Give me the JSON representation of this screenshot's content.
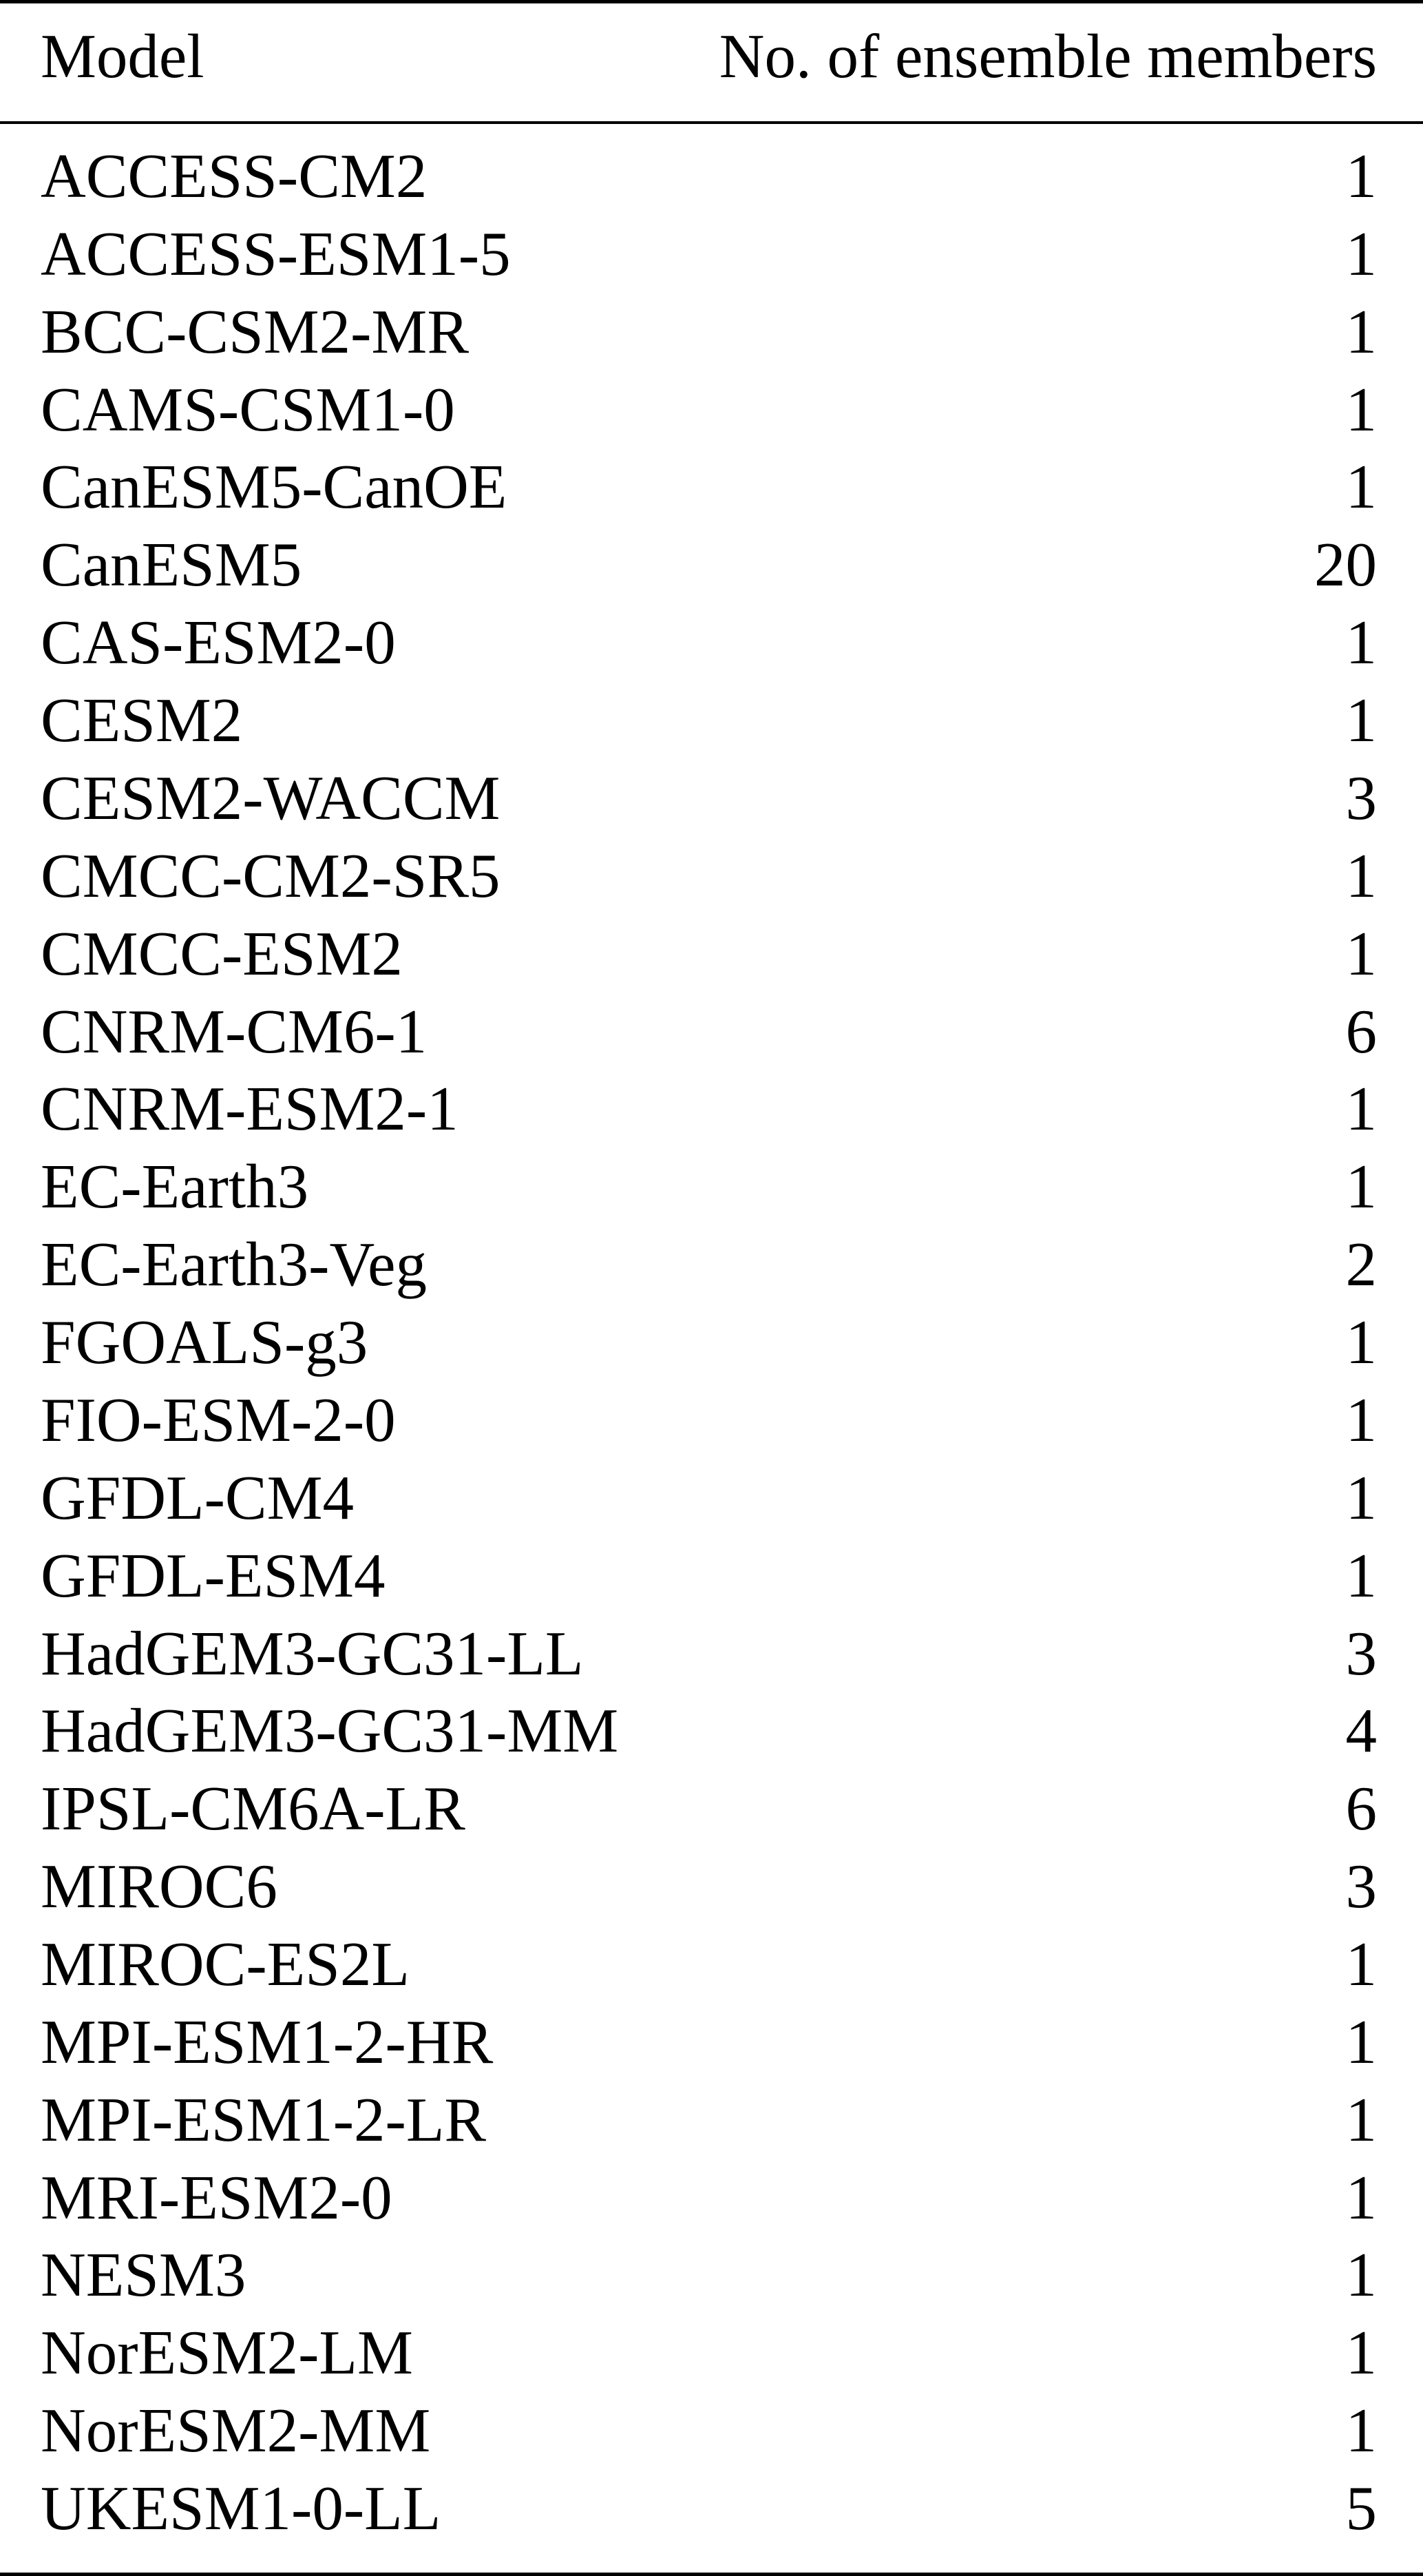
{
  "table": {
    "headers": [
      "Model",
      "No. of ensemble members"
    ],
    "rows": [
      [
        "ACCESS-CM2",
        "1"
      ],
      [
        "ACCESS-ESM1-5",
        "1"
      ],
      [
        "BCC-CSM2-MR",
        "1"
      ],
      [
        "CAMS-CSM1-0",
        "1"
      ],
      [
        "CanESM5-CanOE",
        "1"
      ],
      [
        "CanESM5",
        "20"
      ],
      [
        "CAS-ESM2-0",
        "1"
      ],
      [
        "CESM2",
        "1"
      ],
      [
        "CESM2-WACCM",
        "3"
      ],
      [
        "CMCC-CM2-SR5",
        "1"
      ],
      [
        "CMCC-ESM2",
        "1"
      ],
      [
        "CNRM-CM6-1",
        "6"
      ],
      [
        "CNRM-ESM2-1",
        "1"
      ],
      [
        "EC-Earth3",
        "1"
      ],
      [
        "EC-Earth3-Veg",
        "2"
      ],
      [
        "FGOALS-g3",
        "1"
      ],
      [
        "FIO-ESM-2-0",
        "1"
      ],
      [
        "GFDL-CM4",
        "1"
      ],
      [
        "GFDL-ESM4",
        "1"
      ],
      [
        "HadGEM3-GC31-LL",
        "3"
      ],
      [
        "HadGEM3-GC31-MM",
        "4"
      ],
      [
        "IPSL-CM6A-LR",
        "6"
      ],
      [
        "MIROC6",
        "3"
      ],
      [
        "MIROC-ES2L",
        "1"
      ],
      [
        "MPI-ESM1-2-HR",
        "1"
      ],
      [
        "MPI-ESM1-2-LR",
        "1"
      ],
      [
        "MRI-ESM2-0",
        "1"
      ],
      [
        "NESM3",
        "1"
      ],
      [
        "NorESM2-LM",
        "1"
      ],
      [
        "NorESM2-MM",
        "1"
      ],
      [
        "UKESM1-0-LL",
        "5"
      ]
    ]
  }
}
